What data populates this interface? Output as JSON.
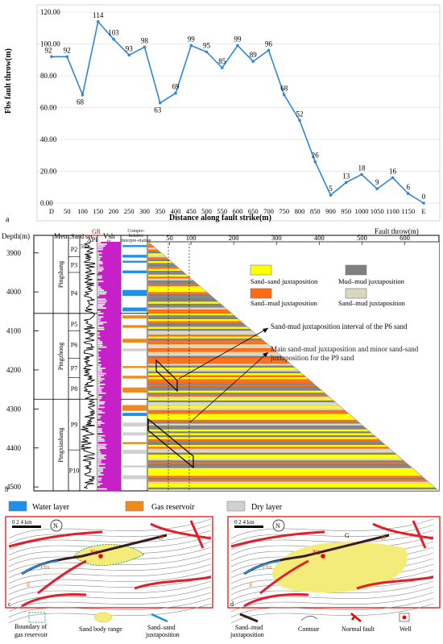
{
  "panel_a": {
    "label": "a",
    "chart_data": {
      "type": "line",
      "ylabel": "Fbs fault throw(m)",
      "xlabel": "Distance along fault strike(m)",
      "ylim": [
        0,
        120
      ],
      "yticks": [
        "0.00",
        "20.00",
        "40.00",
        "60.00",
        "80.00",
        "100.00",
        "120.00"
      ],
      "categories": [
        "D",
        "50",
        "100",
        "150",
        "200",
        "250",
        "300",
        "350",
        "400",
        "450",
        "500",
        "550",
        "600",
        "650",
        "700",
        "750",
        "800",
        "850",
        "900",
        "950",
        "1000",
        "1050",
        "1100",
        "1150",
        "E"
      ],
      "values": [
        92,
        92,
        68,
        114,
        103,
        93,
        98,
        63,
        69,
        99,
        95,
        85,
        99,
        89,
        96,
        68,
        52,
        26,
        5,
        13,
        18,
        9,
        16,
        6,
        0
      ],
      "color": "#2e86de"
    }
  },
  "panel_b": {
    "label": "b",
    "headers": {
      "depth": "Depth(m)",
      "mem": "Mem.",
      "sandset": "Sand set",
      "gr": "GR",
      "api": "API",
      "gr_min": "50",
      "gr_max": "150",
      "vsh": "Vsh",
      "vsh_unit": "%",
      "vsh_min": "0",
      "vsh_max": "100",
      "interp": "Compre-hensive Interpre-etation",
      "throw": "Fault throw(m)"
    },
    "throw_ticks": [
      "50",
      "100",
      "200",
      "300",
      "400",
      "500",
      "600"
    ],
    "depth_ticks": [
      "3900",
      "4000",
      "4100",
      "4200",
      "4300",
      "4400",
      "4500"
    ],
    "members": [
      "Pingshang",
      "Pingzhong",
      "Pingxiashang"
    ],
    "sandsets": [
      "P2",
      "P3",
      "P4",
      "P5",
      "P6",
      "P7",
      "P8",
      "P9",
      "P10"
    ],
    "legend": [
      {
        "label": "Sand–sand juxtaposition",
        "color": "#ffff00"
      },
      {
        "label": "Mud–mud juxtaposition",
        "color": "#808080"
      },
      {
        "label": "Sand–mud juxtaposition",
        "color": "#ff6a13"
      },
      {
        "label": "Sand–mud juxtaposition",
        "color": "#d8d8c0"
      }
    ],
    "annotations": [
      "Sand-mud juxtaposition interval of the P6 sand",
      "Main sand-mud juxtaposition and minor sand-sand juxtaposition for the P9 sand"
    ],
    "layer_legend": [
      {
        "label": "Water layer",
        "color": "#1e90e8"
      },
      {
        "label": "Gas reservoir",
        "color": "#f08a1c"
      },
      {
        "label": "Dry layer",
        "color": "#d0d0d0"
      }
    ]
  },
  "panels_cd": {
    "c_label": "c",
    "d_label": "d",
    "scale_label": "0  2  4 km",
    "c_contours": [
      "3875",
      "3975",
      "4075",
      "4175",
      "4275",
      "4375",
      "4475",
      "4400",
      "4500",
      "4600",
      "4675",
      "4150"
    ],
    "d_contours": [
      "3975",
      "4075",
      "4175",
      "4275",
      "4375",
      "4475",
      "4400",
      "4500",
      "4600",
      "4675",
      "4175"
    ],
    "labels_c": {
      "d": "D",
      "g": "G",
      "fbs": "Fbs",
      "n1": "N1",
      "e": "E"
    },
    "labels_d": {
      "d": "D",
      "g": "G",
      "fbs": "Fbs",
      "n1": "N1",
      "e": "E"
    },
    "legend": [
      {
        "label": "Boundary of gas reservoir"
      },
      {
        "label": "Sand body range"
      },
      {
        "label": "Sand–sand juxtaposition"
      },
      {
        "label": "Sand–mud juxtaposition"
      },
      {
        "label": "Contour"
      },
      {
        "label": "Normal fault"
      },
      {
        "label": "Well"
      }
    ]
  }
}
